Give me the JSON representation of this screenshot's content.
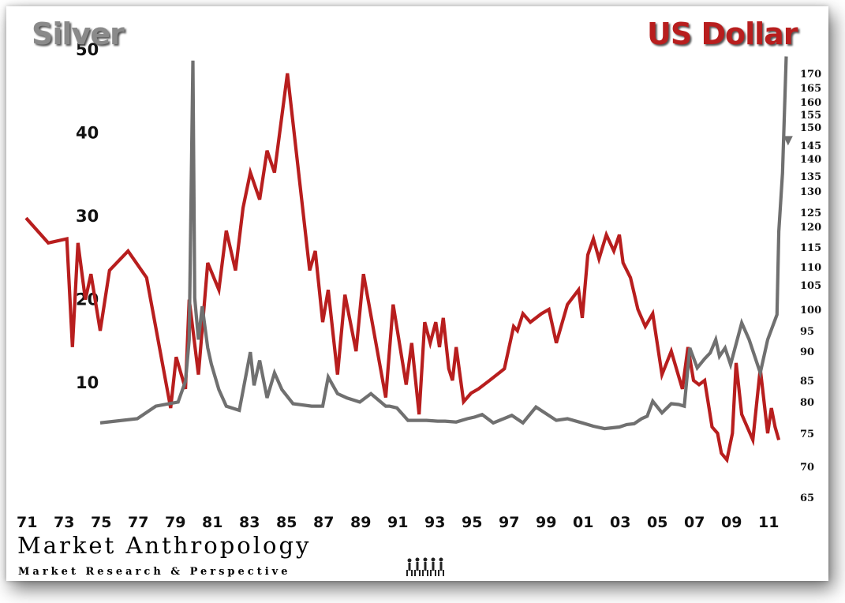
{
  "titles": {
    "left": "Silver",
    "right": "US Dollar"
  },
  "brand": {
    "name": "Market Anthropology",
    "tagline": "Market Research & Perspective"
  },
  "colors": {
    "silver": "#707070",
    "dollar": "#b81e1e"
  },
  "chart_data": {
    "type": "line",
    "title": "",
    "x_ticks": [
      "71",
      "73",
      "75",
      "77",
      "79",
      "81",
      "83",
      "85",
      "87",
      "89",
      "91",
      "93",
      "95",
      "97",
      "99",
      "01",
      "03",
      "05",
      "07",
      "09",
      "11"
    ],
    "left_axis": {
      "ticks": [
        10,
        20,
        30,
        40,
        50
      ]
    },
    "right_axis": {
      "ticks": [
        65,
        70,
        75,
        80,
        85,
        90,
        95,
        100,
        105,
        110,
        115,
        120,
        125,
        130,
        135,
        140,
        145,
        150,
        155,
        160,
        165,
        170
      ]
    },
    "series": [
      {
        "name": "US Dollar",
        "axis": "right",
        "x": [
          1971.0,
          1972.2,
          1973.2,
          1973.5,
          1973.8,
          1974.2,
          1974.5,
          1975.0,
          1975.5,
          1976.5,
          1977.5,
          1978.8,
          1979.1,
          1979.6,
          1979.8,
          1980.3,
          1980.8,
          1981.4,
          1981.8,
          1982.3,
          1982.7,
          1983.1,
          1983.6,
          1984.0,
          1984.4,
          1985.1,
          1986.3,
          1986.6,
          1987.0,
          1987.3,
          1987.8,
          1988.2,
          1988.8,
          1989.2,
          1990.4,
          1990.8,
          1991.5,
          1991.8,
          1992.2,
          1992.5,
          1992.8,
          1993.1,
          1993.3,
          1993.5,
          1993.8,
          1994.0,
          1994.2,
          1994.6,
          1995.0,
          1995.4,
          1996.0,
          1996.8,
          1997.3,
          1997.5,
          1997.8,
          1998.2,
          1998.8,
          1999.2,
          1999.6,
          2000.2,
          2000.8,
          2001.0,
          2001.3,
          2001.6,
          2001.9,
          2002.3,
          2002.7,
          2003.0,
          2003.2,
          2003.6,
          2004.0,
          2004.4,
          2004.8,
          2005.3,
          2005.8,
          2006.4,
          2006.7,
          2007.0,
          2007.3,
          2007.6,
          2008.0,
          2008.3,
          2008.5,
          2008.8,
          2009.1,
          2009.3,
          2009.6,
          2010.2,
          2010.6,
          2011.0,
          2011.2,
          2011.4,
          2011.6
        ]
      },
      {
        "name": "Silver",
        "axis": "left",
        "x": [
          1975.0,
          1977.0,
          1978.0,
          1979.2,
          1979.6,
          1979.8,
          1980.0,
          1980.1,
          1980.3,
          1980.5,
          1980.8,
          1981.0,
          1981.4,
          1981.8,
          1982.5,
          1983.1,
          1983.3,
          1983.6,
          1984.0,
          1984.4,
          1984.8,
          1985.4,
          1986.4,
          1987.0,
          1987.3,
          1987.8,
          1988.3,
          1989.0,
          1989.6,
          1990.4,
          1990.6,
          1991.0,
          1991.6,
          1992.0,
          1992.6,
          1993.2,
          1993.6,
          1994.2,
          1994.8,
          1995.2,
          1995.6,
          1996.2,
          1997.2,
          1997.8,
          1998.5,
          1999.6,
          2000.2,
          2001.0,
          2001.6,
          2002.2,
          2003.0,
          2003.4,
          2003.8,
          2004.2,
          2004.5,
          2004.8,
          2005.3,
          2005.8,
          2006.2,
          2006.5,
          2006.8,
          2007.2,
          2007.6,
          2007.9,
          2008.2,
          2008.4,
          2008.7,
          2009.0,
          2009.6,
          2010.0,
          2010.6,
          2011.0,
          2011.5,
          2011.6,
          2011.8,
          2012.0
        ]
      }
    ],
    "dollar_values": [
      123,
      116,
      117,
      91,
      116,
      102,
      108,
      95,
      109,
      114,
      107,
      79,
      89,
      83,
      102,
      86,
      111,
      104,
      119,
      109,
      126,
      136,
      128,
      143,
      136,
      170,
      109,
      114,
      97,
      104,
      86,
      103,
      90,
      108,
      81,
      101,
      84,
      92,
      78,
      97,
      92,
      97,
      91,
      98,
      87,
      85,
      91,
      80,
      82,
      83,
      85,
      87,
      96,
      95,
      99,
      97,
      99,
      100,
      92,
      101,
      104,
      98,
      113,
      117,
      112,
      118,
      114,
      118,
      111,
      107,
      100,
      96,
      99,
      86,
      90,
      83,
      91,
      85,
      84,
      85,
      76,
      75,
      72,
      71,
      75,
      88,
      78,
      74,
      87,
      75,
      79,
      76,
      74
    ],
    "silver_values": [
      5.0,
      5.5,
      7.0,
      7.5,
      10.0,
      15.0,
      48.5,
      20.0,
      15.0,
      19.0,
      14.0,
      12.0,
      9.0,
      7.0,
      6.5,
      13.5,
      9.5,
      12.5,
      8.0,
      11.0,
      9.0,
      7.3,
      7.0,
      7.0,
      10.5,
      8.5,
      8.0,
      7.5,
      8.5,
      7.0,
      7.0,
      6.8,
      5.3,
      5.3,
      5.3,
      5.2,
      5.2,
      5.1,
      5.5,
      5.7,
      6.0,
      5.0,
      5.9,
      5.0,
      6.9,
      5.3,
      5.5,
      5.0,
      4.6,
      4.3,
      4.5,
      4.8,
      4.9,
      5.5,
      5.8,
      7.6,
      6.2,
      7.3,
      7.2,
      7.0,
      14.0,
      11.6,
      12.7,
      13.4,
      15.0,
      13.0,
      14.0,
      12.0,
      17.0,
      15.0,
      11.0,
      15.0,
      18.0,
      28.0,
      35.0,
      49.0
    ]
  }
}
